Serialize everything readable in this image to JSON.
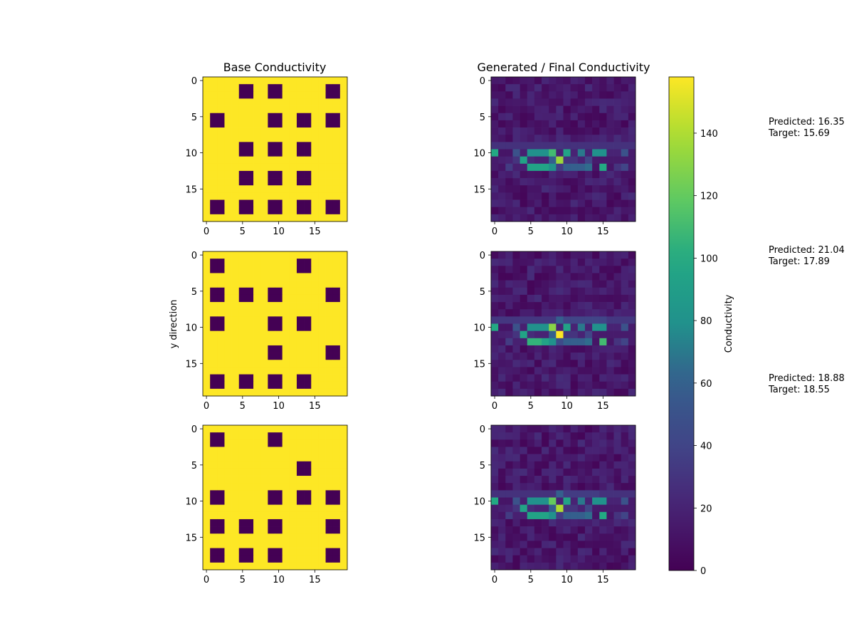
{
  "chart_data": {
    "type": "heatmap",
    "grid_size": [
      20,
      20
    ],
    "colormap": "viridis",
    "column_titles": {
      "base": "Base Conductivity",
      "generated": "Generated / Final Conductivity"
    },
    "ylabel": "y direction",
    "colorbar": {
      "label": "Conductivity",
      "range": [
        0,
        158
      ],
      "ticks": [
        0,
        20,
        40,
        60,
        80,
        100,
        120,
        140
      ]
    },
    "axis_ticks": {
      "x": [
        0,
        5,
        10,
        15
      ],
      "y": [
        0,
        5,
        10,
        15
      ]
    },
    "base_values": {
      "matrix": 158,
      "inclusion": 0,
      "block_size": 2
    },
    "rows": [
      {
        "blocks": [
          [
            5,
            1
          ],
          [
            9,
            1
          ],
          [
            17,
            1
          ],
          [
            1,
            5
          ],
          [
            9,
            5
          ],
          [
            13,
            5
          ],
          [
            17,
            5
          ],
          [
            5,
            9
          ],
          [
            9,
            9
          ],
          [
            13,
            9
          ],
          [
            5,
            13
          ],
          [
            9,
            13
          ],
          [
            13,
            13
          ],
          [
            1,
            17
          ],
          [
            5,
            17
          ],
          [
            9,
            17
          ],
          [
            13,
            17
          ],
          [
            17,
            17
          ]
        ],
        "predicted_label": "Predicted: 16.35",
        "target_label": "Target: 15.69",
        "generated_bands": {
          "row9": [
            28,
            28,
            28,
            28,
            28,
            28,
            28,
            28,
            28,
            30,
            28,
            28,
            28,
            28,
            28,
            28,
            28,
            28,
            28,
            28
          ],
          "row10": [
            100,
            12,
            12,
            50,
            18,
            80,
            80,
            80,
            110,
            20,
            95,
            20,
            70,
            20,
            80,
            80,
            20,
            20,
            50,
            15
          ],
          "row11": [
            15,
            18,
            20,
            30,
            95,
            25,
            20,
            20,
            60,
            135,
            30,
            30,
            20,
            40,
            15,
            15,
            15,
            15,
            15,
            15
          ],
          "row12": [
            15,
            12,
            35,
            18,
            18,
            95,
            95,
            95,
            80,
            35,
            60,
            60,
            60,
            65,
            12,
            100,
            12,
            30,
            40,
            15
          ]
        }
      },
      {
        "blocks": [
          [
            1,
            1
          ],
          [
            13,
            1
          ],
          [
            1,
            5
          ],
          [
            5,
            5
          ],
          [
            9,
            5
          ],
          [
            17,
            5
          ],
          [
            1,
            9
          ],
          [
            9,
            9
          ],
          [
            13,
            9
          ],
          [
            9,
            13
          ],
          [
            17,
            13
          ],
          [
            1,
            17
          ],
          [
            5,
            17
          ],
          [
            9,
            17
          ],
          [
            13,
            17
          ]
        ],
        "predicted_label": "Predicted: 21.04",
        "target_label": "Target: 17.89",
        "generated_bands": {
          "row9": [
            32,
            32,
            32,
            32,
            32,
            32,
            32,
            32,
            32,
            60,
            40,
            40,
            40,
            40,
            40,
            40,
            32,
            32,
            32,
            32
          ],
          "row10": [
            100,
            12,
            12,
            50,
            18,
            80,
            80,
            80,
            130,
            20,
            95,
            20,
            70,
            20,
            80,
            80,
            20,
            20,
            50,
            15
          ],
          "row11": [
            15,
            18,
            20,
            30,
            95,
            25,
            20,
            20,
            60,
            158,
            30,
            30,
            20,
            40,
            15,
            15,
            15,
            15,
            15,
            15
          ],
          "row12": [
            15,
            12,
            35,
            18,
            18,
            105,
            105,
            95,
            80,
            45,
            60,
            60,
            60,
            65,
            12,
            110,
            12,
            30,
            40,
            15
          ]
        }
      },
      {
        "blocks": [
          [
            1,
            1
          ],
          [
            9,
            1
          ],
          [
            13,
            5
          ],
          [
            1,
            9
          ],
          [
            9,
            9
          ],
          [
            13,
            9
          ],
          [
            17,
            9
          ],
          [
            1,
            13
          ],
          [
            5,
            13
          ],
          [
            9,
            13
          ],
          [
            17,
            13
          ],
          [
            1,
            17
          ],
          [
            5,
            17
          ],
          [
            9,
            17
          ],
          [
            17,
            17
          ]
        ],
        "predicted_label": "Predicted: 18.88",
        "target_label": "Target: 18.55",
        "generated_bands": {
          "row9": [
            28,
            28,
            28,
            28,
            28,
            28,
            28,
            28,
            28,
            60,
            35,
            35,
            35,
            35,
            35,
            28,
            28,
            28,
            28,
            28
          ],
          "row10": [
            100,
            12,
            12,
            50,
            18,
            80,
            80,
            80,
            120,
            20,
            95,
            20,
            70,
            20,
            80,
            80,
            20,
            20,
            50,
            15
          ],
          "row11": [
            15,
            18,
            20,
            30,
            95,
            25,
            20,
            20,
            60,
            140,
            30,
            30,
            20,
            40,
            15,
            15,
            15,
            15,
            15,
            15
          ],
          "row12": [
            15,
            12,
            35,
            18,
            18,
            95,
            95,
            95,
            80,
            35,
            60,
            60,
            60,
            65,
            12,
            100,
            12,
            30,
            40,
            15
          ]
        }
      }
    ]
  }
}
